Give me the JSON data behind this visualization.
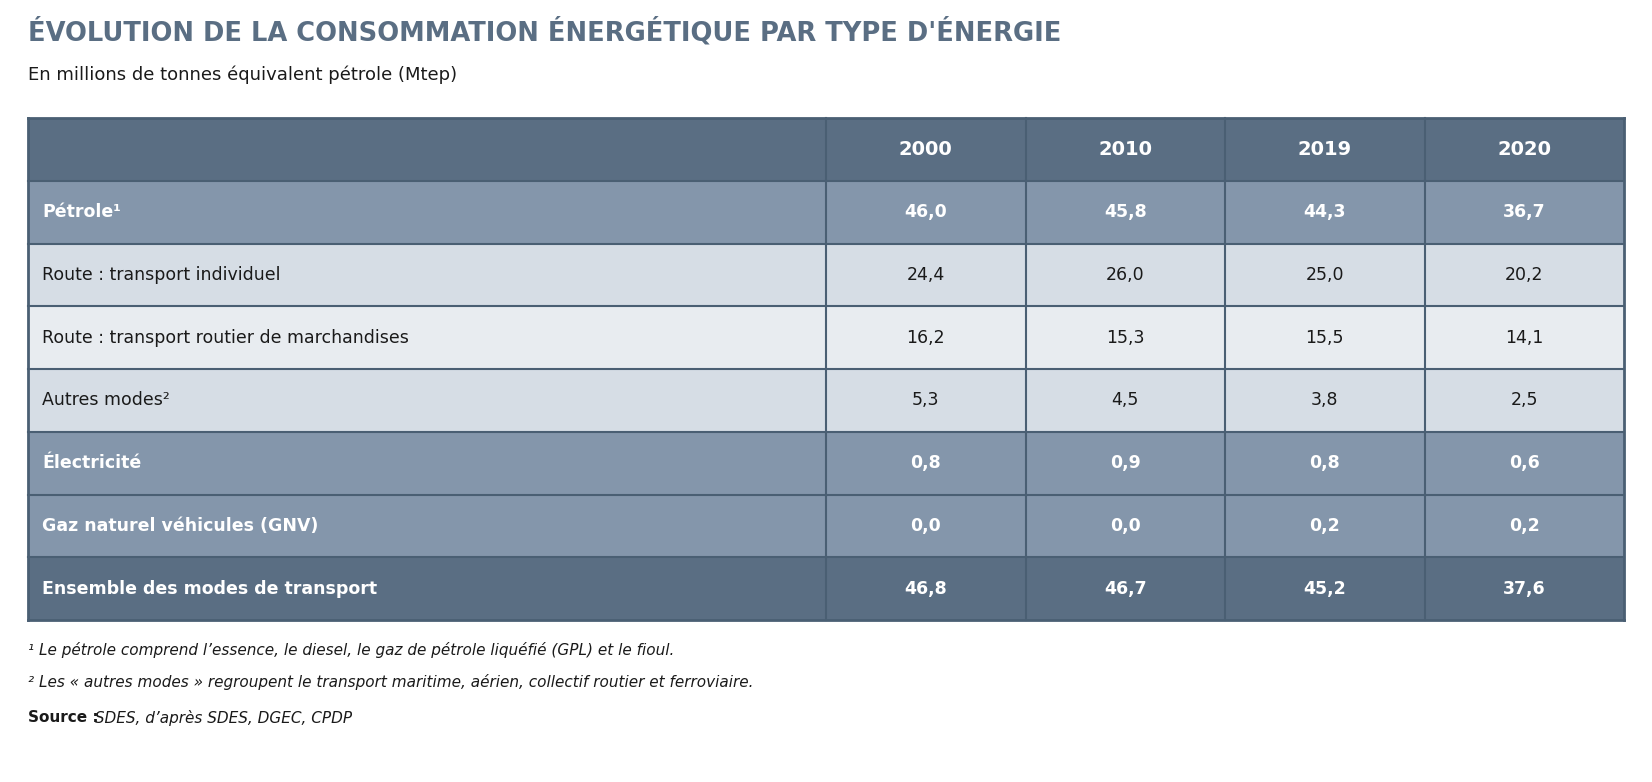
{
  "title": "ÉVOLUTION DE LA CONSOMMATION ÉNERGÉTIQUE PAR TYPE D'ÉNERGIE",
  "subtitle": "En millions de tonnes équivalent pétrole (Mtep)",
  "columns": [
    "",
    "2000",
    "2010",
    "2019",
    "2020"
  ],
  "rows": [
    {
      "label": "Pétrole¹",
      "values": [
        "46,0",
        "45,8",
        "44,3",
        "36,7"
      ],
      "bold": true,
      "bg": "#8496ab",
      "text_color": "#ffffff",
      "label_color": "#ffffff"
    },
    {
      "label": "Route : transport individuel",
      "values": [
        "24,4",
        "26,0",
        "25,0",
        "20,2"
      ],
      "bold": false,
      "bg": "#d6dde5",
      "text_color": "#1a1a1a",
      "label_color": "#1a1a1a"
    },
    {
      "label": "Route : transport routier de marchandises",
      "values": [
        "16,2",
        "15,3",
        "15,5",
        "14,1"
      ],
      "bold": false,
      "bg": "#e8ecf0",
      "text_color": "#1a1a1a",
      "label_color": "#1a1a1a"
    },
    {
      "label": "Autres modes²",
      "values": [
        "5,3",
        "4,5",
        "3,8",
        "2,5"
      ],
      "bold": false,
      "bg": "#d6dde5",
      "text_color": "#1a1a1a",
      "label_color": "#1a1a1a"
    },
    {
      "label": "Électricité",
      "values": [
        "0,8",
        "0,9",
        "0,8",
        "0,6"
      ],
      "bold": true,
      "bg": "#8496ab",
      "text_color": "#ffffff",
      "label_color": "#ffffff"
    },
    {
      "label": "Gaz naturel véhicules (GNV)",
      "values": [
        "0,0",
        "0,0",
        "0,2",
        "0,2"
      ],
      "bold": true,
      "bg": "#8496ab",
      "text_color": "#ffffff",
      "label_color": "#ffffff"
    },
    {
      "label": "Ensemble des modes de transport",
      "values": [
        "46,8",
        "46,7",
        "45,2",
        "37,6"
      ],
      "bold": true,
      "bg": "#5a6e83",
      "text_color": "#ffffff",
      "label_color": "#ffffff"
    }
  ],
  "header_bg": "#5a6e83",
  "header_text_color": "#ffffff",
  "footnote1": "¹ Le pétrole comprend l’essence, le diesel, le gaz de pétrole liquéfié (GPL) et le fioul.",
  "footnote2": "² Les « autres modes » regroupent le transport maritime, aérien, collectif routier et ferroviaire.",
  "source_bold": "Source :",
  "source_text": " SDES, d’après SDES, DGEC, CPDP",
  "title_color": "#5a6e83",
  "background_color": "#ffffff",
  "border_color": "#4a5f73"
}
